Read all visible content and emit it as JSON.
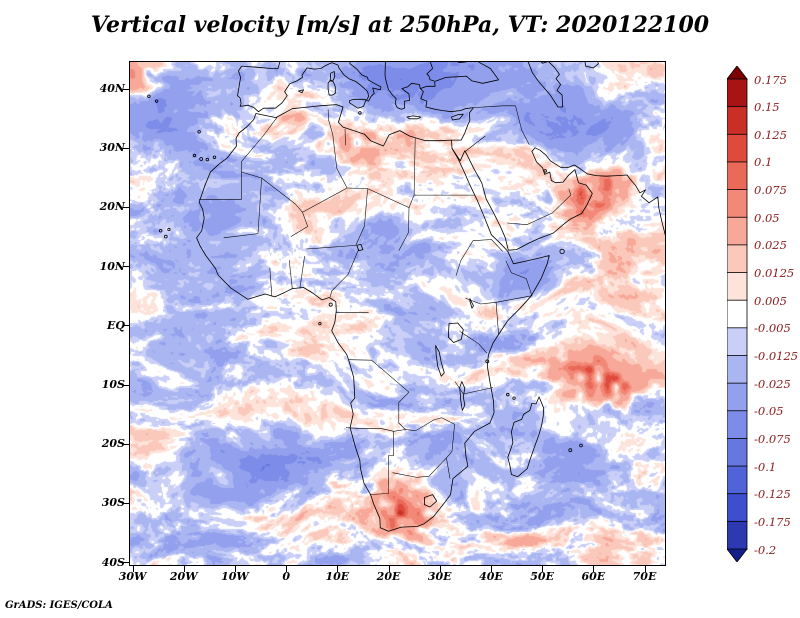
{
  "title": "Vertical velocity [m/s] at 250hPa, VT: 2020122100",
  "credit": "GrADS: IGES/COLA",
  "chart_data": {
    "type": "heatmap",
    "title": "Vertical velocity [m/s] at 250hPa, VT: 2020122100",
    "variable": "Vertical velocity",
    "units": "m/s",
    "pressure_level": "250hPa",
    "valid_time": "2020122100",
    "region": "Africa and surrounding oceans",
    "grid": "off",
    "lon_range": [
      -30.5,
      74
    ],
    "lat_range": [
      -40.5,
      44.5
    ],
    "x_ticks": [
      {
        "lon": -30,
        "label": "30W"
      },
      {
        "lon": -20,
        "label": "20W"
      },
      {
        "lon": -10,
        "label": "10W"
      },
      {
        "lon": 0,
        "label": "0"
      },
      {
        "lon": 10,
        "label": "10E"
      },
      {
        "lon": 20,
        "label": "20E"
      },
      {
        "lon": 30,
        "label": "30E"
      },
      {
        "lon": 40,
        "label": "40E"
      },
      {
        "lon": 50,
        "label": "50E"
      },
      {
        "lon": 60,
        "label": "60E"
      },
      {
        "lon": 70,
        "label": "70E"
      }
    ],
    "y_ticks": [
      {
        "lat": 40,
        "label": "40N"
      },
      {
        "lat": 30,
        "label": "30N"
      },
      {
        "lat": 20,
        "label": "20N"
      },
      {
        "lat": 10,
        "label": "10N"
      },
      {
        "lat": 0,
        "label": "EQ"
      },
      {
        "lat": -10,
        "label": "10S"
      },
      {
        "lat": -20,
        "label": "20S"
      },
      {
        "lat": -30,
        "label": "30S"
      },
      {
        "lat": -40,
        "label": "40S"
      }
    ],
    "colorbar": {
      "position": "right",
      "orientation": "vertical",
      "labels_top_to_bottom": [
        "0.175",
        "0.15",
        "0.125",
        "0.1",
        "0.075",
        "0.05",
        "0.025",
        "0.0125",
        "0.005",
        "-0.005",
        "-0.0125",
        "-0.025",
        "-0.05",
        "-0.075",
        "-0.1",
        "-0.125",
        "-0.175",
        "-0.2"
      ],
      "band_colors_top_to_bottom": [
        "#7f0000",
        "#a81414",
        "#c92f25",
        "#de4a3c",
        "#ea6a5a",
        "#f28877",
        "#f7a898",
        "#fbc9bb",
        "#fde3da",
        "#ffffff",
        "#c9cff7",
        "#aab6f2",
        "#93a0ee",
        "#7c8ce8",
        "#6677e0",
        "#5163d9",
        "#3d4ecf",
        "#2c39b0",
        "#141f8c"
      ],
      "label_color": "#8b1a1a"
    },
    "notable_features": [
      {
        "approx_location": "interior South Africa near 20-25E, 28-33S",
        "reading": "strong positive (dark red) swirl, > 0.1 m/s"
      },
      {
        "approx_location": "SW Indian Ocean near 55-65E, 5-12S",
        "reading": "strong positive (dark red) streaks"
      },
      {
        "approx_location": "Arabian Sea near 57-63E, 18-25N",
        "reading": "strong positive (dark red) patch"
      },
      {
        "approx_location": "most oceans, Sahara and Mediterranean",
        "reading": "weak alternating banded anomalies between -0.05 and 0.05"
      }
    ]
  }
}
